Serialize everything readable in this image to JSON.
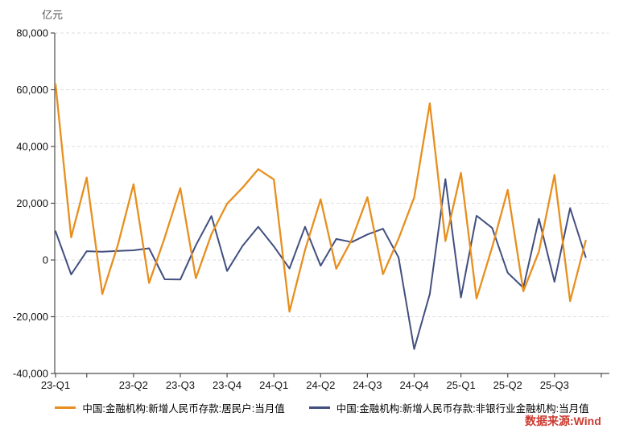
{
  "unit_label": "亿元",
  "source_note": "数据来源:Wind",
  "legend": {
    "items": [
      {
        "label": "中国:金融机构:新增人民币存款:居民户:当月值",
        "color": "#E78F1E"
      },
      {
        "label": "中国:金融机构:新增人民币存款:非银行业金融机构:当月值",
        "color": "#424F7F"
      }
    ]
  },
  "colors": {
    "household_line": "#E78F1E",
    "nonbank_line": "#424F7F",
    "grid": "#DCDCDC",
    "axis": "#4D4D4D",
    "tick_label": "#111111",
    "unit_label": "#555555",
    "source_red": "#CC3A30"
  },
  "chart_data": {
    "type": "line",
    "unit": "亿元",
    "grid": "horizontal-dashed",
    "legend_position": "bottom",
    "ylim": [
      -40000,
      80000
    ],
    "y_ticks": [
      80000,
      60000,
      40000,
      20000,
      0,
      -20000,
      -40000
    ],
    "x": [
      "2023-01",
      "2023-02",
      "2023-03",
      "2023-04",
      "2023-05",
      "2023-06",
      "2023-07",
      "2023-08",
      "2023-09",
      "2023-10",
      "2023-11",
      "2023-12",
      "2024-01",
      "2024-02",
      "2024-03",
      "2024-04",
      "2024-05",
      "2024-06",
      "2024-07",
      "2024-08",
      "2024-09",
      "2024-10",
      "2024-11",
      "2024-12",
      "2025-01",
      "2025-02",
      "2025-03",
      "2025-04",
      "2025-05",
      "2025-06",
      "2025-07",
      "2025-08",
      "2025-09",
      "2025-10",
      "2025-11"
    ],
    "series": [
      {
        "name": "中国:金融机构:新增人民币存款:居民户:当月值",
        "color": "#E78F1E",
        "values": [
          62000,
          8000,
          29000,
          -12000,
          5400,
          26700,
          -8100,
          7900,
          25300,
          -6400,
          9100,
          19800,
          25500,
          32000,
          28400,
          -18200,
          3500,
          21400,
          -3100,
          7200,
          22100,
          -5000,
          7500,
          22000,
          55200,
          6700,
          30700,
          -13600,
          4500,
          24700,
          -11000,
          3000,
          30000,
          -14500,
          6800
        ]
      },
      {
        "name": "中国:金融机构:新增人民币存款:非银行业金融机构:当月值",
        "color": "#424F7F",
        "values": [
          10100,
          -5100,
          3100,
          2900,
          3200,
          3400,
          4100,
          -6800,
          -6900,
          5200,
          15500,
          -3900,
          5000,
          11700,
          4800,
          -3000,
          11700,
          -2000,
          7400,
          6300,
          9000,
          11000,
          900,
          -31400,
          -12000,
          28500,
          -13200,
          15600,
          11300,
          -4500,
          -9800,
          14500,
          -7700,
          18300,
          1000
        ]
      }
    ],
    "x_tick_month_indices": [
      0,
      2,
      5,
      8,
      11,
      14,
      17,
      20,
      23,
      26,
      29,
      32,
      35
    ],
    "x_axis_labels": [
      {
        "label": "23-Q1",
        "month_index": 0
      },
      {
        "label": "23-Q2",
        "month_index": 5
      },
      {
        "label": "23-Q3",
        "month_index": 8
      },
      {
        "label": "23-Q4",
        "month_index": 11
      },
      {
        "label": "24-Q1",
        "month_index": 14
      },
      {
        "label": "24-Q2",
        "month_index": 17
      },
      {
        "label": "24-Q3",
        "month_index": 20
      },
      {
        "label": "24-Q4",
        "month_index": 23
      },
      {
        "label": "25-Q1",
        "month_index": 26
      },
      {
        "label": "25-Q2",
        "month_index": 29
      },
      {
        "label": "25-Q3",
        "month_index": 32
      }
    ]
  }
}
